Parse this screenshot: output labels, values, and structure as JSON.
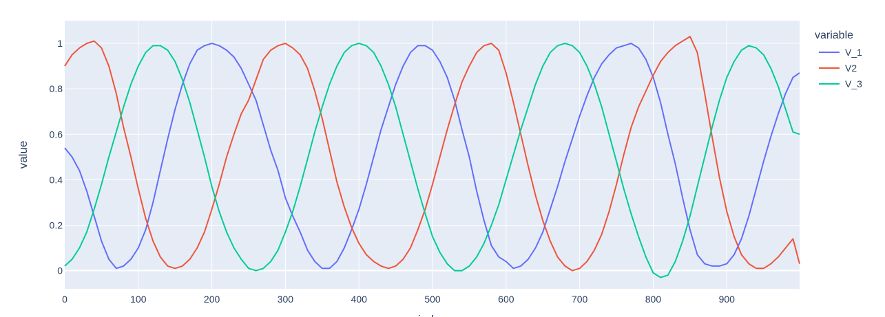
{
  "chart_data": {
    "type": "line",
    "title": "",
    "xlabel": "index",
    "ylabel": "value",
    "xlim": [
      0,
      999
    ],
    "ylim": [
      -0.08,
      1.1
    ],
    "xticks": [
      0,
      100,
      200,
      300,
      400,
      500,
      600,
      700,
      800,
      900
    ],
    "xtick_labels": [
      "0",
      "100",
      "200",
      "300",
      "400",
      "500",
      "600",
      "700",
      "800",
      "900"
    ],
    "yticks": [
      0,
      0.2,
      0.4,
      0.6,
      0.8,
      1
    ],
    "ytick_labels": [
      "0",
      "0.2",
      "0.4",
      "0.6",
      "0.8",
      "1"
    ],
    "grid": true,
    "legend": {
      "title": "variable",
      "position": "right"
    },
    "colors": {
      "plot_bg": "#e5ecf6",
      "grid": "#ffffff",
      "text": "#2a3f5f"
    },
    "x": [
      0,
      10,
      20,
      30,
      40,
      50,
      60,
      70,
      80,
      90,
      100,
      110,
      120,
      130,
      140,
      150,
      160,
      170,
      180,
      190,
      200,
      210,
      220,
      230,
      240,
      250,
      260,
      270,
      280,
      290,
      300,
      310,
      320,
      330,
      340,
      350,
      360,
      370,
      380,
      390,
      400,
      410,
      420,
      430,
      440,
      450,
      460,
      470,
      480,
      490,
      500,
      510,
      520,
      530,
      540,
      550,
      560,
      570,
      580,
      590,
      600,
      610,
      620,
      630,
      640,
      650,
      660,
      670,
      680,
      690,
      700,
      710,
      720,
      730,
      740,
      750,
      760,
      770,
      780,
      790,
      800,
      810,
      820,
      830,
      840,
      850,
      860,
      870,
      880,
      890,
      900,
      910,
      920,
      930,
      940,
      950,
      960,
      970,
      980,
      990,
      999
    ],
    "series": [
      {
        "name": "V_1",
        "color": "#636efa",
        "values": [
          0.54,
          0.5,
          0.44,
          0.35,
          0.24,
          0.13,
          0.05,
          0.01,
          0.02,
          0.05,
          0.1,
          0.18,
          0.3,
          0.44,
          0.58,
          0.71,
          0.82,
          0.91,
          0.97,
          0.99,
          1.0,
          0.99,
          0.97,
          0.94,
          0.89,
          0.82,
          0.75,
          0.64,
          0.53,
          0.44,
          0.32,
          0.24,
          0.17,
          0.09,
          0.04,
          0.01,
          0.01,
          0.04,
          0.1,
          0.18,
          0.27,
          0.38,
          0.5,
          0.62,
          0.72,
          0.82,
          0.9,
          0.96,
          0.99,
          0.99,
          0.97,
          0.92,
          0.85,
          0.75,
          0.62,
          0.5,
          0.35,
          0.22,
          0.11,
          0.06,
          0.04,
          0.01,
          0.02,
          0.05,
          0.1,
          0.17,
          0.27,
          0.37,
          0.48,
          0.58,
          0.68,
          0.77,
          0.85,
          0.91,
          0.95,
          0.98,
          0.99,
          1.0,
          0.98,
          0.93,
          0.85,
          0.74,
          0.6,
          0.47,
          0.32,
          0.18,
          0.07,
          0.03,
          0.02,
          0.02,
          0.03,
          0.07,
          0.14,
          0.24,
          0.36,
          0.48,
          0.59,
          0.69,
          0.78,
          0.85,
          0.87
        ]
      },
      {
        "name": "V2",
        "color": "#ef553b",
        "values": [
          0.9,
          0.95,
          0.98,
          1.0,
          1.01,
          0.98,
          0.9,
          0.78,
          0.63,
          0.5,
          0.36,
          0.23,
          0.13,
          0.06,
          0.02,
          0.01,
          0.02,
          0.05,
          0.1,
          0.17,
          0.27,
          0.38,
          0.5,
          0.6,
          0.69,
          0.75,
          0.84,
          0.93,
          0.97,
          0.99,
          1.0,
          0.98,
          0.95,
          0.89,
          0.79,
          0.67,
          0.53,
          0.39,
          0.28,
          0.19,
          0.12,
          0.07,
          0.04,
          0.02,
          0.01,
          0.02,
          0.05,
          0.1,
          0.18,
          0.27,
          0.38,
          0.5,
          0.62,
          0.73,
          0.83,
          0.9,
          0.96,
          0.99,
          1.0,
          0.97,
          0.87,
          0.74,
          0.6,
          0.46,
          0.33,
          0.22,
          0.13,
          0.06,
          0.02,
          0.0,
          0.01,
          0.04,
          0.09,
          0.16,
          0.26,
          0.38,
          0.51,
          0.63,
          0.72,
          0.79,
          0.86,
          0.92,
          0.96,
          0.99,
          1.01,
          1.03,
          0.96,
          0.78,
          0.59,
          0.41,
          0.26,
          0.15,
          0.07,
          0.03,
          0.01,
          0.01,
          0.03,
          0.06,
          0.1,
          0.14,
          0.03
        ]
      },
      {
        "name": "V_3",
        "color": "#00cc96",
        "values": [
          0.02,
          0.05,
          0.1,
          0.17,
          0.27,
          0.38,
          0.5,
          0.61,
          0.72,
          0.82,
          0.9,
          0.96,
          0.99,
          0.99,
          0.97,
          0.92,
          0.84,
          0.74,
          0.62,
          0.5,
          0.37,
          0.26,
          0.17,
          0.1,
          0.05,
          0.01,
          0.0,
          0.01,
          0.04,
          0.09,
          0.17,
          0.26,
          0.37,
          0.49,
          0.61,
          0.72,
          0.82,
          0.9,
          0.96,
          0.99,
          1.0,
          0.99,
          0.96,
          0.9,
          0.82,
          0.72,
          0.6,
          0.48,
          0.36,
          0.25,
          0.15,
          0.08,
          0.03,
          0.0,
          0.0,
          0.02,
          0.06,
          0.12,
          0.2,
          0.29,
          0.4,
          0.51,
          0.62,
          0.72,
          0.82,
          0.9,
          0.96,
          0.99,
          1.0,
          0.99,
          0.96,
          0.9,
          0.82,
          0.72,
          0.6,
          0.48,
          0.36,
          0.25,
          0.15,
          0.06,
          -0.01,
          -0.03,
          -0.02,
          0.04,
          0.13,
          0.24,
          0.37,
          0.5,
          0.63,
          0.75,
          0.85,
          0.92,
          0.97,
          0.99,
          0.98,
          0.95,
          0.89,
          0.81,
          0.71,
          0.61,
          0.6
        ]
      }
    ]
  }
}
